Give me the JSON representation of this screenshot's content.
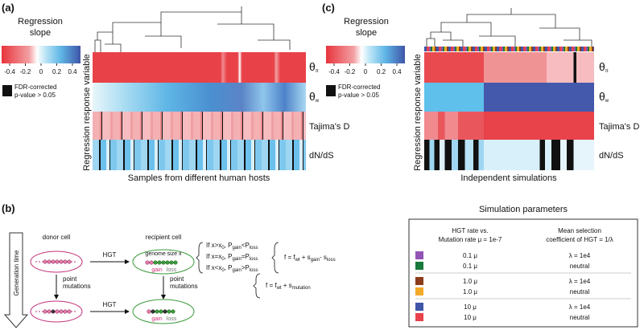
{
  "panel_a": {
    "label": "(a)",
    "legend_title": [
      "Regression",
      "slope"
    ],
    "colorbar_ticks": [
      "-0.4",
      "-0.2",
      "0",
      "0.2",
      "0.4"
    ],
    "fdr_label": [
      "FDR-corrected",
      "p-value > 0.05"
    ],
    "y_axis_label": "Regression response variable",
    "x_axis_label": "Samples from different human hosts",
    "rows": [
      [
        "θ",
        "π"
      ],
      [
        "θ",
        "w"
      ],
      [
        "Tajima's D"
      ],
      [
        "dN/dS"
      ]
    ]
  },
  "panel_c": {
    "label": "(c)",
    "legend_title": [
      "Regression",
      "slope"
    ],
    "colorbar_ticks": [
      "-0.4",
      "-0.2",
      "0",
      "0.2",
      "0.4"
    ],
    "fdr_label": [
      "FDR-corrected",
      "p-value > 0.05"
    ],
    "y_axis_label": "Regression response variable",
    "x_axis_label": "Independent simulations",
    "rows": [
      [
        "θ",
        "π"
      ],
      [
        "θ",
        "w"
      ],
      [
        "Tajima's D"
      ],
      [
        "dN/dS"
      ]
    ]
  },
  "panel_b": {
    "label": "(b)",
    "axis_label": "Generation time",
    "donor": "donor cell",
    "recipient": "recipient cell",
    "hgt_top": "HGT",
    "hgt_bottom": "HGT",
    "genome_size": "genome size x",
    "gain": "gain",
    "loss": "loss",
    "gain_bottom": "gain",
    "loss_bottom": "loss",
    "conditions": [
      [
        "If x>x",
        "0",
        ", P",
        "gain",
        "<P",
        "loss"
      ],
      [
        "If x=x",
        "0",
        ", P",
        "gain",
        "=P",
        "loss"
      ],
      [
        "If x<x",
        "0",
        ", P",
        "gain",
        ">P",
        "loss"
      ]
    ],
    "fitness_hgt": [
      "f = f",
      "wt",
      " + s",
      "gain",
      "- s",
      "loss"
    ],
    "fitness_mutation": [
      "f = f",
      "wt",
      " + s",
      "mutation"
    ],
    "point_mutations_left": [
      "point",
      "mutations"
    ],
    "point_mutations_right": [
      "point",
      "mutations"
    ]
  },
  "table": {
    "title": "Simulation parameters",
    "header_hgt": [
      "HGT rate vs.",
      "Mutation rate μ = 1e-7"
    ],
    "header_selection": [
      "Mean selection",
      "coefficient of HGT =  1/λ"
    ],
    "rows": [
      {
        "color": "#9254b5",
        "hgt": "0.1 μ",
        "selection": "λ = 1e4"
      },
      {
        "color": "#177a3c",
        "hgt": "0.1 μ",
        "selection": "neutral"
      },
      {
        "color": "#8b3d1c",
        "hgt": "1.0 μ",
        "selection": "λ = 1e4"
      },
      {
        "color": "#f3a92a",
        "hgt": "1.0 μ",
        "selection": "neutral"
      },
      {
        "color": "#3e55a8",
        "hgt": "10 μ",
        "selection": "λ = 1e4"
      },
      {
        "color": "#e8424b",
        "hgt": "10 μ",
        "selection": "neutral"
      }
    ]
  }
}
